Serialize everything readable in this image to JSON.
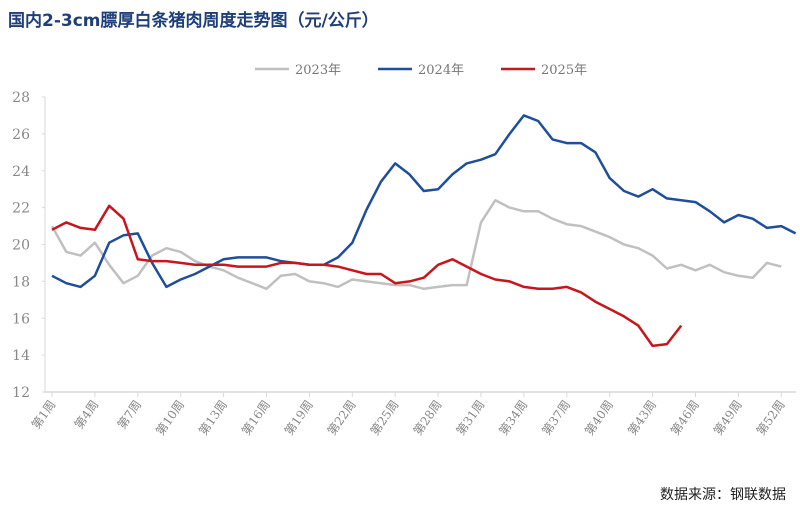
{
  "chart_data": {
    "type": "line",
    "title": "国内2-3cm膘厚白条猪肉周度走势图（元/公斤）",
    "xlabel": "",
    "ylabel": "",
    "ylim": [
      12,
      28
    ],
    "yticks": [
      12,
      14,
      16,
      18,
      20,
      22,
      24,
      26,
      28
    ],
    "xticks": [
      "第1周",
      "第4周",
      "第7周",
      "第10周",
      "第13周",
      "第16周",
      "第19周",
      "第22周",
      "第25周",
      "第28周",
      "第31周",
      "第34周",
      "第37周",
      "第40周",
      "第43周",
      "第46周",
      "第49周",
      "第52周"
    ],
    "xtick_weeks": [
      1,
      4,
      7,
      10,
      13,
      16,
      19,
      22,
      25,
      28,
      31,
      34,
      37,
      40,
      43,
      46,
      49,
      52
    ],
    "x_range": [
      1,
      53
    ],
    "legend_position": "top-center",
    "series": [
      {
        "name": "2023年",
        "color": "#c0c0c0",
        "values": [
          21.0,
          19.6,
          19.4,
          20.1,
          18.9,
          17.9,
          18.3,
          19.4,
          19.8,
          19.6,
          19.1,
          18.8,
          18.6,
          18.2,
          17.9,
          17.6,
          18.3,
          18.4,
          18.0,
          17.9,
          17.7,
          18.1,
          18.0,
          17.9,
          17.8,
          17.8,
          17.6,
          17.7,
          17.8,
          17.8,
          21.2,
          22.4,
          22.0,
          21.8,
          21.8,
          21.4,
          21.1,
          21.0,
          20.7,
          20.4,
          20.0,
          19.8,
          19.4,
          18.7,
          18.9,
          18.6,
          18.9,
          18.5,
          18.3,
          18.2,
          19.0,
          18.8
        ]
      },
      {
        "name": "2024年",
        "color": "#1f4e9a",
        "values": [
          18.3,
          17.9,
          17.7,
          18.3,
          20.1,
          20.5,
          20.6,
          19.0,
          17.7,
          18.1,
          18.4,
          18.8,
          19.2,
          19.3,
          19.3,
          19.3,
          19.1,
          19.0,
          18.9,
          18.9,
          19.3,
          20.1,
          21.9,
          23.4,
          24.4,
          23.8,
          22.9,
          23.0,
          23.8,
          24.4,
          24.6,
          24.9,
          26.0,
          27.0,
          26.7,
          25.7,
          25.5,
          25.5,
          25.0,
          23.6,
          22.9,
          22.6,
          23.0,
          22.5,
          22.4,
          22.3,
          21.8,
          21.2,
          21.6,
          21.4,
          20.9,
          21.0,
          20.6
        ]
      },
      {
        "name": "2025年",
        "color": "#c8161d",
        "values": [
          20.8,
          21.2,
          20.9,
          20.8,
          22.1,
          21.4,
          19.2,
          19.1,
          19.1,
          19.0,
          18.9,
          18.9,
          18.9,
          18.8,
          18.8,
          18.8,
          19.0,
          19.0,
          18.9,
          18.9,
          18.8,
          18.6,
          18.4,
          18.4,
          17.9,
          18.0,
          18.2,
          18.9,
          19.2,
          18.8,
          18.4,
          18.1,
          18.0,
          17.7,
          17.6,
          17.6,
          17.7,
          17.4,
          16.9,
          16.5,
          16.1,
          15.6,
          14.5,
          14.6,
          15.6
        ]
      }
    ]
  },
  "source": "数据来源：钢联数据"
}
